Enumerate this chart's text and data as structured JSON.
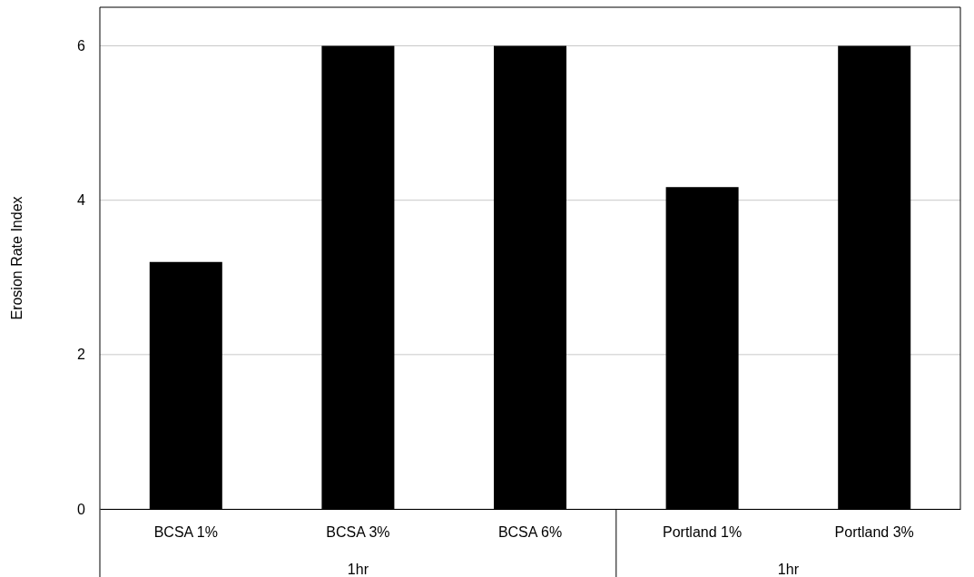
{
  "chart_data": {
    "type": "bar",
    "ylabel": "Erosion Rate Index",
    "categories": [
      "BCSA 1%",
      "BCSA 3%",
      "BCSA 6%",
      "Portland 1%",
      "Portland 3%"
    ],
    "values": [
      3.2,
      6,
      6,
      4.17,
      6
    ],
    "color": "#000000",
    "ylim": [
      0,
      6.5
    ],
    "yticks": [
      0,
      2,
      4,
      6
    ],
    "grid": "y",
    "annotations": [
      "1hr",
      "1hr"
    ]
  }
}
